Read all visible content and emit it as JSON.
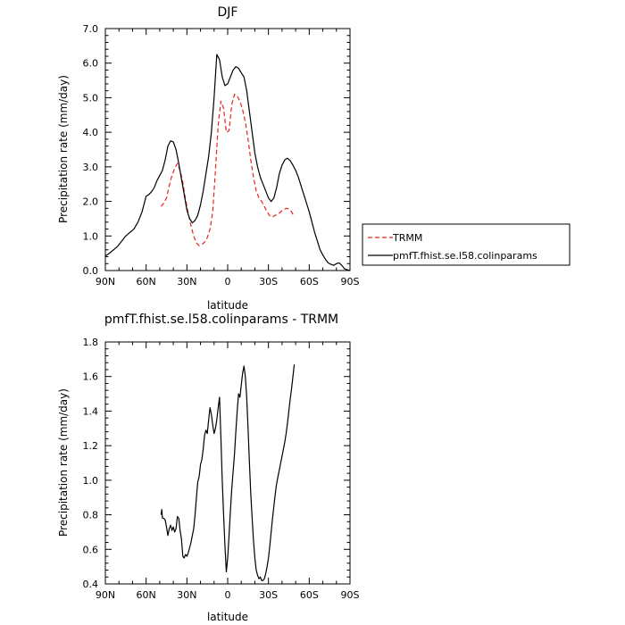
{
  "chart_data": [
    {
      "type": "line",
      "title": "DJF",
      "xlabel": "latitude",
      "ylabel": "Precipitation rate (mm/day)",
      "xlim": [
        90,
        -90
      ],
      "ylim": [
        0,
        7
      ],
      "x_ticks": [
        90,
        60,
        30,
        0,
        -30,
        -60,
        -90
      ],
      "x_tick_labels": [
        "90N",
        "60N",
        "30N",
        "0",
        "30S",
        "60S",
        "90S"
      ],
      "y_ticks": [
        0,
        1,
        2,
        3,
        4,
        5,
        6,
        7
      ],
      "y_tick_labels": [
        "0.0",
        "1.0",
        "2.0",
        "3.0",
        "4.0",
        "5.0",
        "6.0",
        "7.0"
      ],
      "legend_position": "right",
      "series": [
        {
          "name": "TRMM",
          "color": "#e8231f",
          "dash": "dashed",
          "x": [
            49,
            47,
            45,
            43,
            41,
            39,
            37,
            35,
            33,
            31,
            29,
            27,
            25,
            23,
            21,
            19,
            17,
            15,
            13,
            11,
            9,
            7,
            5,
            3,
            1,
            -1,
            -3,
            -5,
            -7,
            -9,
            -11,
            -13,
            -15,
            -17,
            -19,
            -21,
            -23,
            -25,
            -27,
            -29,
            -31,
            -33,
            -35,
            -37,
            -39,
            -41,
            -43,
            -45,
            -47,
            -49
          ],
          "y": [
            1.85,
            1.95,
            2.1,
            2.45,
            2.75,
            2.95,
            3.1,
            2.9,
            2.55,
            2.05,
            1.65,
            1.3,
            1.0,
            0.8,
            0.72,
            0.75,
            0.82,
            0.95,
            1.2,
            1.7,
            2.9,
            4.2,
            4.9,
            4.7,
            4.0,
            4.05,
            4.8,
            5.1,
            5.05,
            4.9,
            4.65,
            4.3,
            3.8,
            3.2,
            2.7,
            2.3,
            2.1,
            2.0,
            1.85,
            1.7,
            1.58,
            1.55,
            1.6,
            1.62,
            1.7,
            1.75,
            1.8,
            1.78,
            1.7,
            1.55
          ]
        },
        {
          "name": "pmfT.fhist.se.l58.colinparams",
          "color": "#000000",
          "dash": "solid",
          "x": [
            90,
            87,
            84,
            81,
            78,
            75,
            72,
            69,
            66,
            63,
            60,
            58,
            56,
            54,
            52,
            50,
            48,
            46,
            44,
            42,
            40,
            38,
            36,
            34,
            32,
            30,
            28,
            26,
            24,
            22,
            20,
            18,
            16,
            14,
            12,
            10,
            8,
            6,
            4,
            2,
            0,
            -2,
            -4,
            -6,
            -8,
            -10,
            -12,
            -14,
            -16,
            -18,
            -20,
            -22,
            -24,
            -26,
            -28,
            -30,
            -32,
            -34,
            -36,
            -38,
            -40,
            -42,
            -44,
            -46,
            -48,
            -50,
            -52,
            -54,
            -56,
            -58,
            -60,
            -62,
            -64,
            -66,
            -68,
            -70,
            -72,
            -74,
            -76,
            -78,
            -80,
            -82,
            -84,
            -86,
            -88,
            -90
          ],
          "y": [
            0.42,
            0.5,
            0.6,
            0.7,
            0.85,
            1.0,
            1.1,
            1.2,
            1.4,
            1.7,
            2.15,
            2.2,
            2.28,
            2.4,
            2.6,
            2.75,
            2.9,
            3.2,
            3.6,
            3.75,
            3.72,
            3.5,
            3.1,
            2.65,
            2.2,
            1.75,
            1.5,
            1.38,
            1.45,
            1.6,
            1.9,
            2.3,
            2.8,
            3.3,
            4.0,
            5.0,
            6.25,
            6.1,
            5.6,
            5.35,
            5.4,
            5.6,
            5.8,
            5.9,
            5.85,
            5.72,
            5.6,
            5.2,
            4.6,
            4.0,
            3.4,
            3.0,
            2.7,
            2.5,
            2.3,
            2.1,
            2.0,
            2.1,
            2.4,
            2.8,
            3.05,
            3.2,
            3.25,
            3.18,
            3.05,
            2.9,
            2.7,
            2.45,
            2.2,
            1.95,
            1.7,
            1.4,
            1.1,
            0.85,
            0.6,
            0.45,
            0.32,
            0.22,
            0.18,
            0.15,
            0.2,
            0.22,
            0.15,
            0.05,
            0.02,
            0.0
          ]
        }
      ]
    },
    {
      "type": "line",
      "title": "pmfT.fhist.se.l58.colinparams - TRMM",
      "xlabel": "latitude",
      "ylabel": "Precipitation rate (mm/day)",
      "xlim": [
        90,
        -90
      ],
      "ylim": [
        0.4,
        1.8
      ],
      "x_ticks": [
        90,
        60,
        30,
        0,
        -30,
        -60,
        -90
      ],
      "x_tick_labels": [
        "90N",
        "60N",
        "30N",
        "0",
        "30S",
        "60S",
        "90S"
      ],
      "y_ticks": [
        0.4,
        0.6,
        0.8,
        1.0,
        1.2,
        1.4,
        1.6,
        1.8
      ],
      "y_tick_labels": [
        "0.4",
        "0.6",
        "0.8",
        "1.0",
        "1.2",
        "1.4",
        "1.6",
        "1.8"
      ],
      "series": [
        {
          "color": "#000000",
          "dash": "solid",
          "x": [
            49,
            48.5,
            48,
            47,
            46,
            45,
            44,
            43,
            42,
            41,
            40,
            39,
            38,
            37,
            36,
            35,
            34,
            33,
            32,
            31,
            30,
            29,
            28,
            27,
            26,
            25,
            24,
            23,
            22,
            21,
            20,
            19,
            18,
            17,
            16,
            15,
            14,
            13,
            12,
            11,
            10,
            9,
            8,
            7,
            6,
            5,
            4,
            3,
            2,
            1,
            0,
            -1,
            -2,
            -3,
            -4,
            -5,
            -6,
            -7,
            -8,
            -9,
            -10,
            -11,
            -12,
            -13,
            -14,
            -15,
            -16,
            -17,
            -18,
            -19,
            -20,
            -21,
            -22,
            -23,
            -24,
            -25,
            -26,
            -27,
            -28,
            -29,
            -30,
            -31,
            -32,
            -33,
            -34,
            -35,
            -36,
            -37,
            -38,
            -39,
            -40,
            -41,
            -42,
            -43,
            -44,
            -45,
            -46,
            -47,
            -48,
            -49
          ],
          "y": [
            0.8,
            0.83,
            0.78,
            0.78,
            0.77,
            0.73,
            0.68,
            0.72,
            0.74,
            0.71,
            0.73,
            0.7,
            0.72,
            0.79,
            0.78,
            0.71,
            0.66,
            0.56,
            0.55,
            0.57,
            0.56,
            0.58,
            0.61,
            0.64,
            0.68,
            0.72,
            0.8,
            0.9,
            0.99,
            1.02,
            1.09,
            1.12,
            1.18,
            1.26,
            1.29,
            1.27,
            1.35,
            1.42,
            1.38,
            1.32,
            1.27,
            1.3,
            1.35,
            1.42,
            1.48,
            1.25,
            1.0,
            0.8,
            0.62,
            0.47,
            0.55,
            0.68,
            0.82,
            0.95,
            1.05,
            1.15,
            1.28,
            1.4,
            1.5,
            1.48,
            1.55,
            1.62,
            1.66,
            1.6,
            1.48,
            1.3,
            1.1,
            0.92,
            0.78,
            0.65,
            0.55,
            0.48,
            0.45,
            0.43,
            0.44,
            0.42,
            0.42,
            0.43,
            0.46,
            0.5,
            0.55,
            0.62,
            0.7,
            0.78,
            0.85,
            0.92,
            0.98,
            1.02,
            1.06,
            1.1,
            1.14,
            1.18,
            1.22,
            1.27,
            1.33,
            1.4,
            1.47,
            1.53,
            1.6,
            1.67
          ]
        }
      ]
    }
  ]
}
